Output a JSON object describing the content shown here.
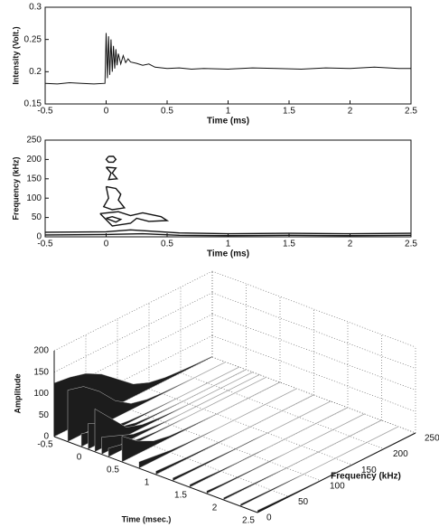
{
  "chart_data": [
    {
      "type": "line",
      "xlabel": "Time (ms)",
      "ylabel": "Intensity (Volt.)",
      "xlim": [
        -0.5,
        2.5
      ],
      "ylim": [
        0.15,
        0.3
      ],
      "xticks": [
        -0.5,
        0,
        0.5,
        1,
        1.5,
        2,
        2.5
      ],
      "yticks": [
        0.15,
        0.2,
        0.25,
        0.3
      ],
      "series": [
        {
          "color": "#111",
          "x": [
            -0.5,
            -0.4,
            -0.3,
            -0.2,
            -0.1,
            -0.01,
            0,
            0.01,
            0.02,
            0.03,
            0.04,
            0.05,
            0.06,
            0.07,
            0.08,
            0.09,
            0.1,
            0.12,
            0.14,
            0.16,
            0.18,
            0.2,
            0.25,
            0.3,
            0.35,
            0.4,
            0.5,
            0.6,
            0.7,
            0.8,
            1,
            1.2,
            1.4,
            1.6,
            1.8,
            2,
            2.2,
            2.4,
            2.5
          ],
          "values": [
            0.182,
            0.181,
            0.183,
            0.182,
            0.181,
            0.182,
            0.26,
            0.19,
            0.255,
            0.195,
            0.25,
            0.2,
            0.24,
            0.205,
            0.235,
            0.21,
            0.228,
            0.212,
            0.225,
            0.214,
            0.22,
            0.215,
            0.213,
            0.21,
            0.212,
            0.207,
            0.205,
            0.206,
            0.204,
            0.205,
            0.204,
            0.206,
            0.205,
            0.204,
            0.206,
            0.205,
            0.207,
            0.205,
            0.205
          ]
        }
      ]
    },
    {
      "type": "contour",
      "xlabel": "Time (ms)",
      "ylabel": "Frequency (kHz)",
      "color": "#111",
      "xlim": [
        -0.5,
        2.5
      ],
      "ylim": [
        0,
        250
      ],
      "xticks": [
        -0.5,
        0,
        0.5,
        1,
        1.5,
        2,
        2.5
      ],
      "yticks": [
        0,
        50,
        100,
        150,
        200,
        250
      ],
      "contours": [
        {
          "x": [
            0.02,
            0.06,
            0.08,
            0.06,
            0.02,
            0.0,
            0.02
          ],
          "y": [
            208,
            208,
            200,
            193,
            193,
            200,
            208
          ]
        },
        {
          "x": [
            0.0,
            0.08,
            0.05,
            0.09,
            0.02,
            0.04,
            0.0
          ],
          "y": [
            180,
            178,
            165,
            150,
            148,
            165,
            180
          ]
        },
        {
          "x": [
            0.0,
            0.08,
            0.12,
            0.1,
            0.15,
            0.05,
            -0.02,
            0.02,
            0.0
          ],
          "y": [
            130,
            125,
            110,
            95,
            75,
            70,
            78,
            100,
            130
          ]
        },
        {
          "x": [
            -0.05,
            0.1,
            0.2,
            0.3,
            0.45,
            0.5,
            0.35,
            0.25,
            0.2,
            0.05,
            -0.05
          ],
          "y": [
            60,
            65,
            55,
            62,
            52,
            42,
            40,
            48,
            35,
            28,
            60
          ]
        },
        {
          "x": [
            0.0,
            0.05,
            0.12,
            0.08,
            0.0
          ],
          "y": [
            48,
            52,
            45,
            38,
            48
          ]
        },
        {
          "x": [
            -0.5,
            0.0,
            0.2,
            0.6,
            1.0,
            1.5,
            2.0,
            2.5
          ],
          "y": [
            12,
            13,
            18,
            10,
            8,
            9,
            8,
            9
          ]
        },
        {
          "x": [
            -0.5,
            0.0,
            0.3,
            0.6,
            1.0,
            1.5,
            2.0,
            2.5
          ],
          "y": [
            5,
            6,
            8,
            4,
            3,
            4,
            3,
            4
          ]
        }
      ]
    },
    {
      "type": "surface3d",
      "xlabel": "Frequency (kHz)",
      "ylabel": "Time (msec.)",
      "zlabel": "Amplitude",
      "xlim": [
        0,
        250
      ],
      "ylim": [
        -0.5,
        2.5
      ],
      "zlim": [
        0,
        200
      ],
      "xticks": [
        0,
        50,
        100,
        150,
        200,
        250
      ],
      "yticks": [
        -0.5,
        0,
        0.5,
        1,
        1.5,
        2,
        2.5
      ],
      "zticks": [
        0,
        50,
        100,
        150,
        200
      ],
      "frequencies": [
        0,
        25,
        50,
        75,
        100,
        125,
        150,
        175,
        200,
        225,
        250
      ],
      "slices": [
        {
          "time": -0.5,
          "values": [
            125,
            120,
            110,
            90,
            60,
            30,
            15,
            8,
            5,
            3,
            2
          ]
        },
        {
          "time": -0.3,
          "values": [
            120,
            110,
            80,
            40,
            15,
            6,
            3,
            2,
            1,
            1,
            1
          ]
        },
        {
          "time": -0.1,
          "values": [
            30,
            20,
            10,
            5,
            3,
            2,
            1,
            1,
            1,
            1,
            1
          ]
        },
        {
          "time": 0,
          "values": [
            60,
            40,
            15,
            6,
            3,
            2,
            1,
            1,
            1,
            1,
            1
          ]
        },
        {
          "time": 0.1,
          "values": [
            100,
            60,
            20,
            8,
            4,
            2,
            1,
            1,
            1,
            1,
            1
          ]
        },
        {
          "time": 0.2,
          "values": [
            40,
            25,
            10,
            5,
            2,
            1,
            1,
            1,
            1,
            1,
            1
          ]
        },
        {
          "time": 0.3,
          "values": [
            20,
            12,
            6,
            3,
            2,
            1,
            1,
            1,
            1,
            1,
            1
          ]
        },
        {
          "time": 0.5,
          "values": [
            60,
            30,
            12,
            5,
            3,
            2,
            1,
            1,
            1,
            1,
            1
          ]
        },
        {
          "time": 0.75,
          "values": [
            15,
            10,
            5,
            3,
            2,
            1,
            1,
            1,
            1,
            1,
            1
          ]
        },
        {
          "time": 1,
          "values": [
            8,
            6,
            4,
            3,
            2,
            1,
            1,
            1,
            1,
            1,
            1
          ]
        },
        {
          "time": 1.25,
          "values": [
            7,
            5,
            4,
            3,
            2,
            2,
            1,
            1,
            1,
            1,
            1
          ]
        },
        {
          "time": 1.5,
          "values": [
            6,
            5,
            3,
            2,
            2,
            1,
            1,
            1,
            1,
            1,
            1
          ]
        },
        {
          "time": 1.75,
          "values": [
            6,
            4,
            3,
            2,
            2,
            1,
            1,
            1,
            1,
            1,
            1
          ]
        },
        {
          "time": 2,
          "values": [
            5,
            4,
            3,
            2,
            1,
            1,
            1,
            1,
            1,
            1,
            1
          ]
        },
        {
          "time": 2.25,
          "values": [
            5,
            4,
            3,
            2,
            1,
            1,
            1,
            1,
            1,
            1,
            1
          ]
        },
        {
          "time": 2.5,
          "values": [
            5,
            4,
            3,
            2,
            1,
            1,
            1,
            1,
            1,
            1,
            1
          ]
        }
      ]
    }
  ]
}
